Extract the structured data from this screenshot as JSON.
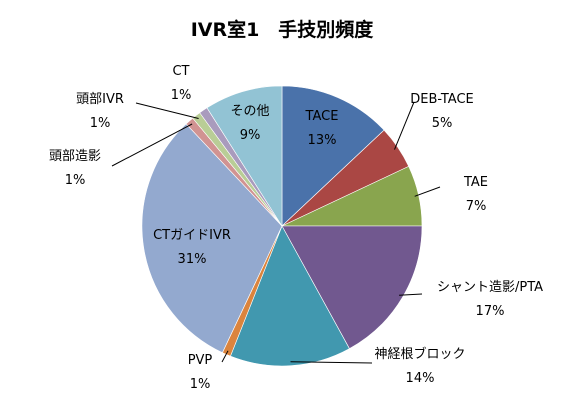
{
  "chart_data": {
    "type": "pie",
    "title": "IVR室1　手技別頻度",
    "start_angle_deg": 0,
    "direction": "clockwise",
    "slices": [
      {
        "label": "TACE",
        "value": 13,
        "percent": "13%",
        "color": "#4A72AA"
      },
      {
        "label": "DEB-TACE",
        "value": 5,
        "percent": "5%",
        "color": "#AA4744"
      },
      {
        "label": "TAE",
        "value": 7,
        "percent": "7%",
        "color": "#89A54E"
      },
      {
        "label": "シャント造影/PTA",
        "value": 17,
        "percent": "17%",
        "color": "#71588F"
      },
      {
        "label": "神経根ブロック",
        "value": 14,
        "percent": "14%",
        "color": "#4198AF"
      },
      {
        "label": "PVP",
        "value": 1,
        "percent": "1%",
        "color": "#DB843D"
      },
      {
        "label": "CTガイドIVR",
        "value": 31,
        "percent": "31%",
        "color": "#93A9CF"
      },
      {
        "label": "頭部造影",
        "value": 1,
        "percent": "1%",
        "color": "#D19392"
      },
      {
        "label": "頭部IVR",
        "value": 1,
        "percent": "1%",
        "color": "#B9CD96"
      },
      {
        "label": "CT",
        "value": 1,
        "percent": "1%",
        "color": "#A99BBD"
      },
      {
        "label": "その他",
        "value": 9,
        "percent": "9%",
        "color": "#92C3D4"
      }
    ]
  }
}
